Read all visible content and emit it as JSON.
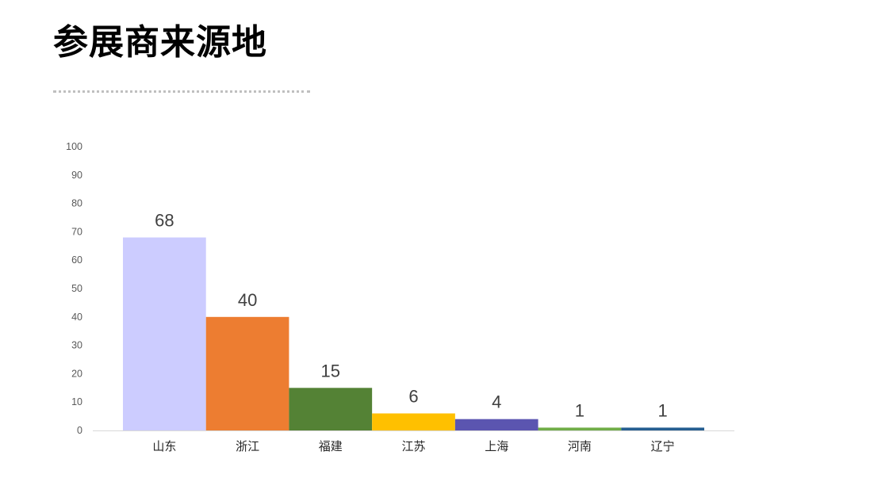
{
  "page": {
    "title": "参展商来源地"
  },
  "chart_data": {
    "type": "bar",
    "title": "",
    "xlabel": "",
    "ylabel": "",
    "ylim": [
      0,
      100
    ],
    "y_ticks": [
      0,
      10,
      20,
      30,
      40,
      50,
      60,
      70,
      80,
      90,
      100
    ],
    "grid": false,
    "legend": "none",
    "categories": [
      "山东",
      "浙江",
      "福建",
      "江苏",
      "上海",
      "河南",
      "辽宁"
    ],
    "values": [
      68,
      40,
      15,
      6,
      4,
      1,
      1
    ],
    "bar_colors": [
      "#CCCCFF",
      "#ED7D31",
      "#548235",
      "#FFC000",
      "#5B55B0",
      "#70AD47",
      "#255E91"
    ]
  }
}
